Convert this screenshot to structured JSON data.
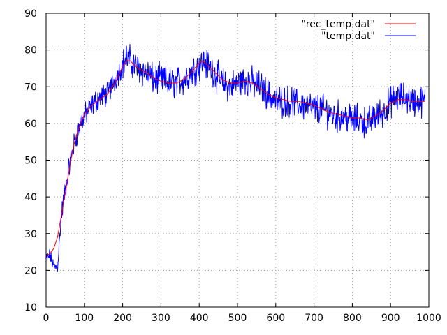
{
  "chart_data": {
    "type": "line",
    "title": "",
    "xlabel": "",
    "ylabel": "",
    "xlim": [
      0,
      1000
    ],
    "ylim": [
      10,
      90
    ],
    "xticks": [
      0,
      100,
      200,
      300,
      400,
      500,
      600,
      700,
      800,
      900,
      1000
    ],
    "yticks": [
      10,
      20,
      30,
      40,
      50,
      60,
      70,
      80,
      90
    ],
    "xtick_labels": [
      "0",
      "100",
      "200",
      "300",
      "400",
      "500",
      "600",
      "700",
      "800",
      "900",
      "1000"
    ],
    "ytick_labels": [
      "10",
      "20",
      "30",
      "40",
      "50",
      "60",
      "70",
      "80",
      "90"
    ],
    "grid": true,
    "legend_position": "top-right",
    "series": [
      {
        "name": "\"rec_temp.dat\"",
        "color": "#ff0000",
        "x": [
          0,
          10,
          20,
          30,
          40,
          50,
          60,
          70,
          80,
          90,
          100,
          120,
          140,
          160,
          180,
          200,
          210,
          220,
          240,
          260,
          280,
          300,
          320,
          340,
          360,
          380,
          400,
          410,
          420,
          440,
          460,
          480,
          500,
          520,
          540,
          560,
          580,
          600,
          620,
          640,
          660,
          680,
          700,
          720,
          740,
          760,
          780,
          800,
          820,
          840,
          860,
          880,
          900,
          920,
          940,
          960,
          980,
          990
        ],
        "y": [
          24,
          24.5,
          26,
          29,
          35,
          41,
          47,
          53,
          57,
          60,
          62.5,
          65,
          66.5,
          68,
          71,
          75.5,
          77,
          77,
          75,
          74,
          72.5,
          71.5,
          71,
          71,
          72,
          74,
          76.5,
          77,
          76,
          74,
          72,
          71,
          71,
          71.5,
          71,
          69.5,
          68,
          67,
          66.5,
          66,
          66,
          65.5,
          65,
          64,
          63,
          62.5,
          62,
          61.5,
          61.5,
          61,
          62,
          63.5,
          65.5,
          66.5,
          66.5,
          66,
          66,
          66
        ]
      },
      {
        "name": "\"temp.dat\"",
        "color": "#0000ff",
        "x": [
          0,
          10,
          20,
          30,
          40,
          50,
          60,
          70,
          80,
          90,
          100,
          120,
          140,
          160,
          180,
          200,
          210,
          220,
          240,
          260,
          280,
          300,
          320,
          340,
          360,
          380,
          400,
          410,
          420,
          440,
          460,
          480,
          500,
          520,
          540,
          560,
          580,
          600,
          620,
          640,
          660,
          680,
          700,
          720,
          740,
          760,
          780,
          800,
          820,
          840,
          860,
          880,
          900,
          920,
          940,
          960,
          980,
          990
        ],
        "y": [
          23,
          24,
          21,
          21,
          35,
          42,
          48,
          53,
          57,
          60,
          62,
          65,
          67,
          68,
          72,
          76,
          78,
          77,
          75,
          74,
          72,
          72,
          71,
          71,
          72,
          74,
          76,
          77,
          76,
          74,
          71,
          70,
          71,
          72,
          71,
          70,
          68,
          66,
          66,
          66,
          65,
          65,
          64,
          64,
          63,
          62,
          62,
          61,
          61,
          60,
          62,
          63,
          66,
          67,
          67,
          66,
          66,
          66
        ]
      }
    ]
  }
}
